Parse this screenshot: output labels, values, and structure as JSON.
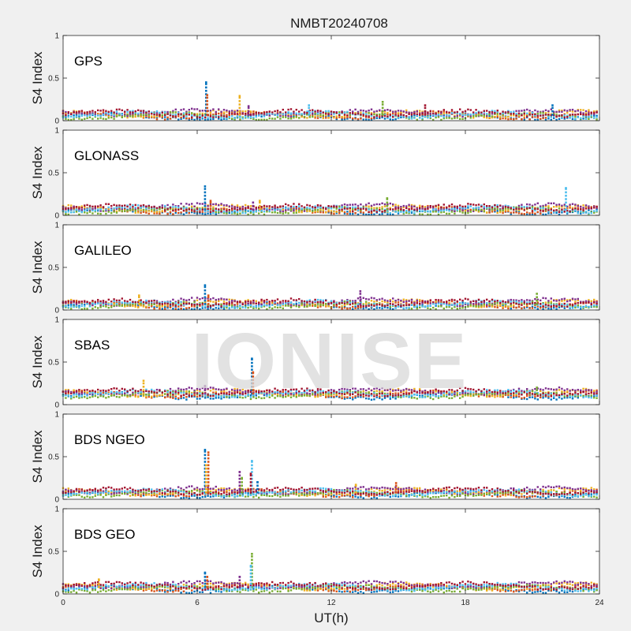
{
  "figure": {
    "title": "NMBT20240708",
    "xlabel": "UT(h)",
    "watermark": "IONISE"
  },
  "chart_data": [
    {
      "type": "scatter",
      "label": "GPS",
      "ylabel": "S4 Index",
      "xlim": [
        0,
        24
      ],
      "ylim": [
        0,
        1
      ],
      "xticks": [
        0,
        6,
        12,
        18,
        24
      ],
      "yticks": [
        0,
        0.5,
        1
      ],
      "baseline": 0.07,
      "spikes": [
        {
          "x": 6.4,
          "y": 0.45
        },
        {
          "x": 6.45,
          "y": 0.3
        },
        {
          "x": 7.9,
          "y": 0.29
        },
        {
          "x": 8.3,
          "y": 0.17
        },
        {
          "x": 14.3,
          "y": 0.22
        },
        {
          "x": 11.0,
          "y": 0.18
        },
        {
          "x": 16.2,
          "y": 0.18
        },
        {
          "x": 21.9,
          "y": 0.18
        }
      ]
    },
    {
      "type": "scatter",
      "label": "GLONASS",
      "ylabel": "S4 Index",
      "xlim": [
        0,
        24
      ],
      "ylim": [
        0,
        1
      ],
      "xticks": [
        0,
        6,
        12,
        18,
        24
      ],
      "yticks": [
        0,
        0.5,
        1
      ],
      "baseline": 0.07,
      "spikes": [
        {
          "x": 6.35,
          "y": 0.34
        },
        {
          "x": 6.6,
          "y": 0.17
        },
        {
          "x": 8.8,
          "y": 0.17
        },
        {
          "x": 8.5,
          "y": 0.15
        },
        {
          "x": 14.5,
          "y": 0.2
        },
        {
          "x": 22.5,
          "y": 0.32
        }
      ]
    },
    {
      "type": "scatter",
      "label": "GALILEO",
      "ylabel": "S4 Index",
      "xlim": [
        0,
        24
      ],
      "ylim": [
        0,
        1
      ],
      "xticks": [
        0,
        6,
        12,
        18,
        24
      ],
      "yticks": [
        0,
        0.5,
        1
      ],
      "baseline": 0.07,
      "spikes": [
        {
          "x": 6.35,
          "y": 0.29
        },
        {
          "x": 6.5,
          "y": 0.17
        },
        {
          "x": 3.4,
          "y": 0.17
        },
        {
          "x": 13.3,
          "y": 0.22
        },
        {
          "x": 21.2,
          "y": 0.19
        }
      ]
    },
    {
      "type": "scatter",
      "label": "SBAS",
      "ylabel": "S4 Index",
      "xlim": [
        0,
        24
      ],
      "ylim": [
        0,
        1
      ],
      "xticks": [
        0,
        6,
        12,
        18,
        24
      ],
      "yticks": [
        0,
        0.5,
        1
      ],
      "baseline": 0.13,
      "spikes": [
        {
          "x": 8.45,
          "y": 0.54
        },
        {
          "x": 8.5,
          "y": 0.38
        },
        {
          "x": 3.6,
          "y": 0.28
        },
        {
          "x": 6.35,
          "y": 0.22
        },
        {
          "x": 21.2,
          "y": 0.2
        }
      ]
    },
    {
      "type": "scatter",
      "label": "BDS NGEO",
      "ylabel": "S4 Index",
      "xlim": [
        0,
        24
      ],
      "ylim": [
        0,
        1
      ],
      "xticks": [
        0,
        6,
        12,
        18,
        24
      ],
      "yticks": [
        0,
        0.5,
        1
      ],
      "baseline": 0.08,
      "spikes": [
        {
          "x": 6.35,
          "y": 0.58
        },
        {
          "x": 6.5,
          "y": 0.55
        },
        {
          "x": 6.4,
          "y": 0.4
        },
        {
          "x": 7.9,
          "y": 0.32
        },
        {
          "x": 8.0,
          "y": 0.25
        },
        {
          "x": 8.45,
          "y": 0.45
        },
        {
          "x": 8.4,
          "y": 0.3
        },
        {
          "x": 8.7,
          "y": 0.2
        },
        {
          "x": 14.9,
          "y": 0.19
        },
        {
          "x": 13.1,
          "y": 0.17
        }
      ]
    },
    {
      "type": "scatter",
      "label": "BDS GEO",
      "ylabel": "S4 Index",
      "xlim": [
        0,
        24
      ],
      "ylim": [
        0,
        1
      ],
      "xticks": [
        0,
        6,
        12,
        18,
        24
      ],
      "yticks": [
        0,
        0.5,
        1
      ],
      "baseline": 0.08,
      "spikes": [
        {
          "x": 6.35,
          "y": 0.25
        },
        {
          "x": 6.45,
          "y": 0.2
        },
        {
          "x": 1.6,
          "y": 0.17
        },
        {
          "x": 7.9,
          "y": 0.2
        },
        {
          "x": 8.45,
          "y": 0.47
        },
        {
          "x": 8.4,
          "y": 0.33
        }
      ]
    }
  ],
  "series_colors": [
    "#0072BD",
    "#D95319",
    "#EDB120",
    "#7E2F8E",
    "#77AC30",
    "#4DBEEE",
    "#A2142F"
  ]
}
